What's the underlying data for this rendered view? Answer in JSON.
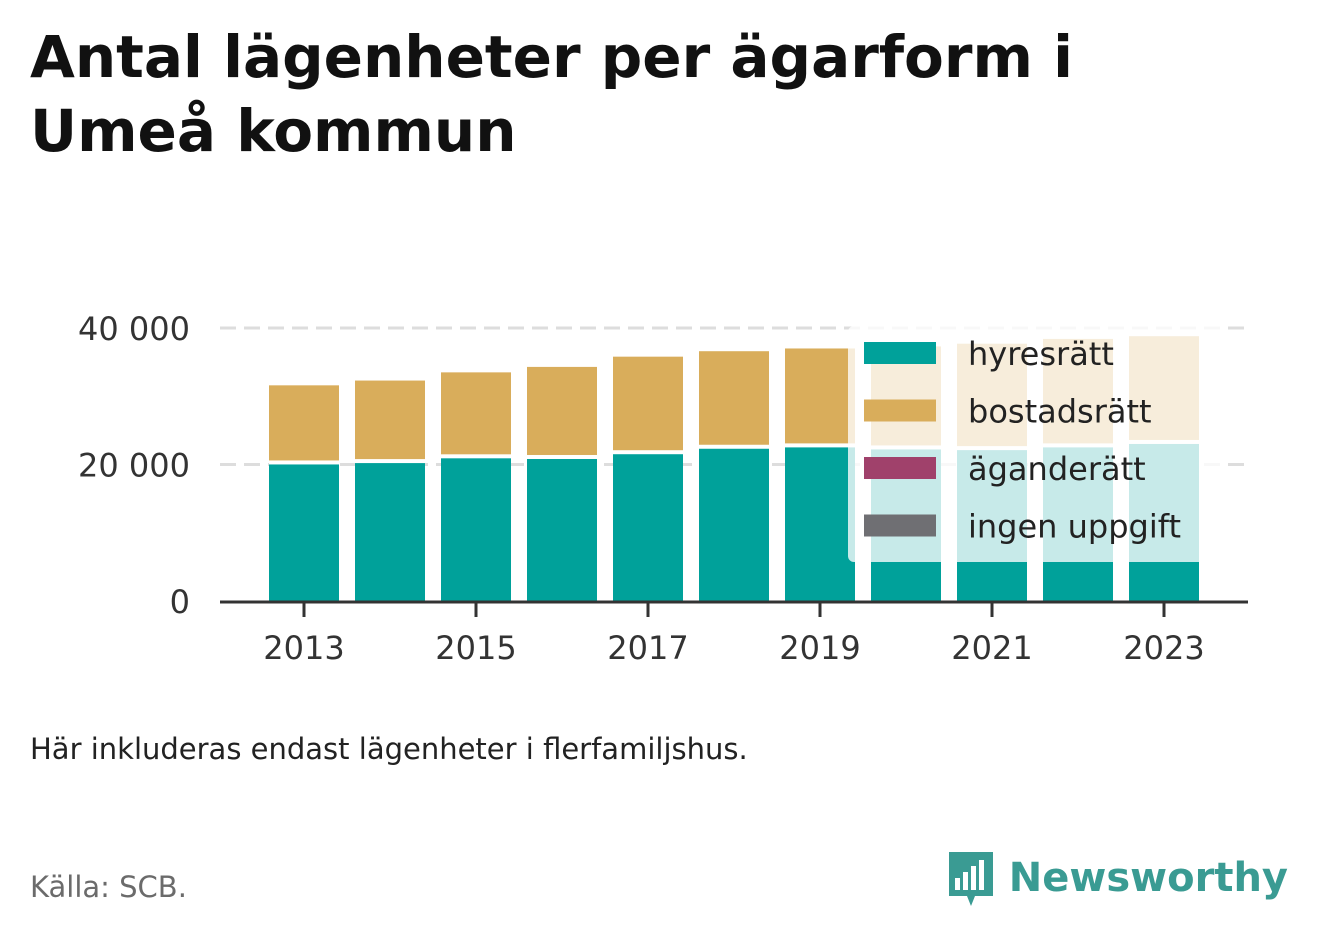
{
  "title": "Antal lägenheter per ägarform i Umeå kommun",
  "note": "Här inkluderas endast lägenheter i flerfamiljshus.",
  "source": "Källa: SCB.",
  "brand": "Newsworthy",
  "colors": {
    "hyresratt": "#00a19a",
    "bostadsratt": "#d9ad5b",
    "aganderatt": "#a0416b",
    "ingen_uppgift": "#6f6f73",
    "grid": "#dddddd",
    "axis": "#333333"
  },
  "chart_data": {
    "type": "bar",
    "stacked": true,
    "categories": [
      2013,
      2014,
      2015,
      2016,
      2017,
      2018,
      2019,
      2020,
      2021,
      2022,
      2023
    ],
    "x_tick_labels": [
      "2013",
      "2015",
      "2017",
      "2019",
      "2021",
      "2023"
    ],
    "y_tick_labels": [
      "0",
      "20 000",
      "40 000"
    ],
    "ylim": [
      0,
      40000
    ],
    "grid": true,
    "legend_position": "top-right",
    "series": [
      {
        "name": "hyresrätt",
        "values": [
          20300,
          20500,
          21200,
          21100,
          21800,
          22600,
          22800,
          22500,
          22400,
          22800,
          23300
        ]
      },
      {
        "name": "bostadsrätt",
        "values": [
          11300,
          11800,
          12300,
          13200,
          14000,
          14000,
          14200,
          14800,
          15300,
          15600,
          15500
        ]
      },
      {
        "name": "äganderätt",
        "values": [
          0,
          0,
          0,
          0,
          0,
          0,
          0,
          0,
          0,
          0,
          0
        ]
      },
      {
        "name": "ingen uppgift",
        "values": [
          0,
          0,
          0,
          0,
          0,
          0,
          0,
          0,
          0,
          0,
          0
        ]
      }
    ]
  }
}
